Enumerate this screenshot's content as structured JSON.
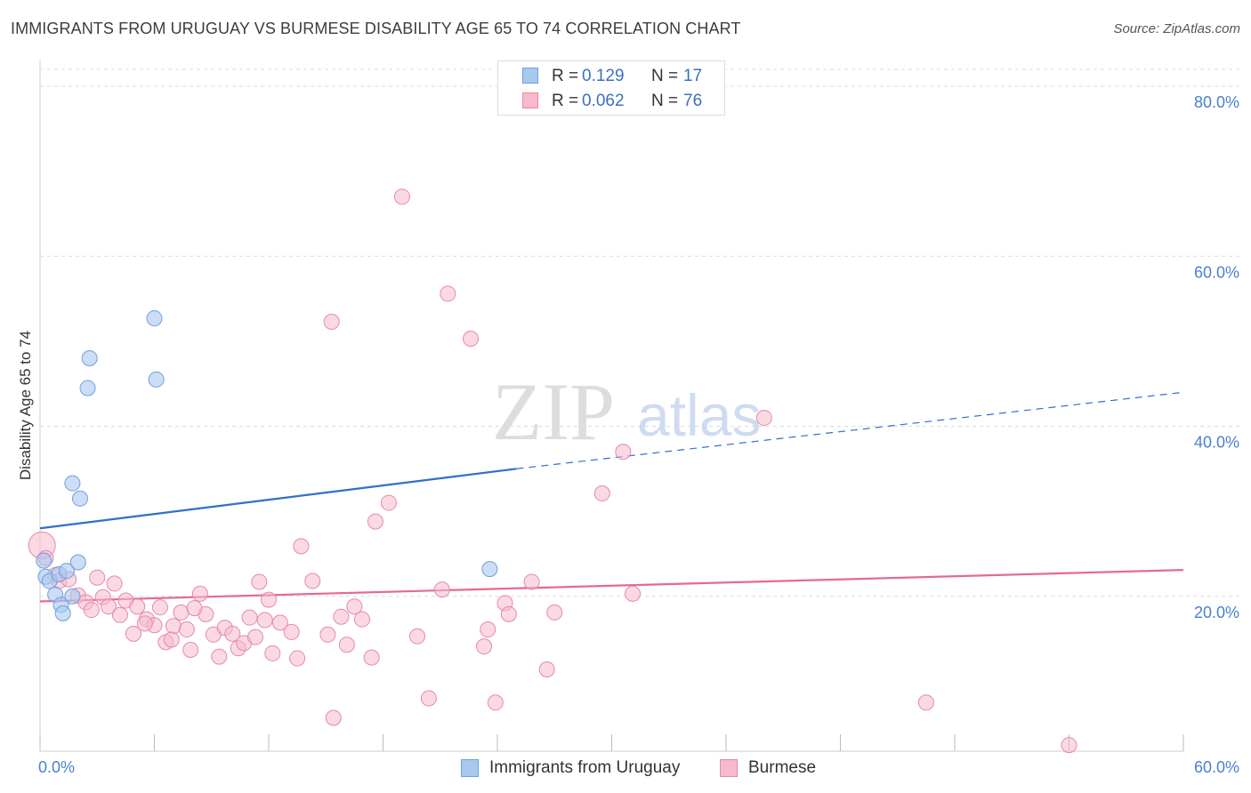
{
  "title": "IMMIGRANTS FROM URUGUAY VS BURMESE DISABILITY AGE 65 TO 74 CORRELATION CHART",
  "source": "Source: ZipAtlas.com",
  "watermark": {
    "zip": "ZIP",
    "atlas": "atlas"
  },
  "legend_top": [
    {
      "r_label": "R =",
      "r_value": "0.129",
      "n_label": "N =",
      "n_value": "17"
    },
    {
      "r_label": "R =",
      "r_value": "0.062",
      "n_label": "N =",
      "n_value": "76"
    }
  ],
  "legend_bottom": [
    "Immigrants from Uruguay",
    "Burmese"
  ],
  "colors": {
    "uruguay_fill": "#a9c8f0",
    "uruguay_stroke": "#6f9fdc",
    "uruguay_line": "#2f6fcf",
    "burmese_fill": "#f7b9cc",
    "burmese_stroke": "#e58aa7",
    "burmese_line": "#e46a92",
    "axis_label": "#4a7fd0",
    "grid": "#dcdcdc"
  },
  "chart_data": {
    "type": "scatter",
    "title": "IMMIGRANTS FROM URUGUAY VS BURMESE DISABILITY AGE 65 TO 74 CORRELATION CHART",
    "xlabel": "",
    "ylabel": "Disability Age 65 to 74",
    "xlim": [
      0,
      60
    ],
    "ylim": [
      0,
      80
    ],
    "x_tick_labels": [
      "0.0%",
      "60.0%"
    ],
    "y_tick_labels": [
      "20.0%",
      "40.0%",
      "60.0%",
      "80.0%"
    ],
    "y_ticks": [
      20,
      40,
      60,
      80
    ],
    "grid": true,
    "legend_position": "top-center and bottom",
    "series": [
      {
        "name": "Immigrants from Uruguay",
        "color": "#a9c8f0",
        "points": [
          {
            "x": 0.2,
            "y": 24.2
          },
          {
            "x": 0.3,
            "y": 22.3
          },
          {
            "x": 0.5,
            "y": 21.8
          },
          {
            "x": 0.8,
            "y": 20.2
          },
          {
            "x": 1.0,
            "y": 22.6
          },
          {
            "x": 1.1,
            "y": 19.0
          },
          {
            "x": 1.2,
            "y": 18.0
          },
          {
            "x": 1.4,
            "y": 23.0
          },
          {
            "x": 1.7,
            "y": 20.0
          },
          {
            "x": 1.7,
            "y": 33.3
          },
          {
            "x": 2.0,
            "y": 24.0
          },
          {
            "x": 2.1,
            "y": 31.5
          },
          {
            "x": 2.5,
            "y": 44.5
          },
          {
            "x": 2.6,
            "y": 48.0
          },
          {
            "x": 6.0,
            "y": 52.7
          },
          {
            "x": 6.1,
            "y": 45.5
          },
          {
            "x": 23.6,
            "y": 23.2
          }
        ],
        "trend": {
          "x": [
            0,
            25
          ],
          "y": [
            28.0,
            35.0
          ],
          "dashed_to": {
            "x": 60,
            "y": 44.0
          }
        }
      },
      {
        "name": "Burmese",
        "color": "#f7b9cc",
        "points": [
          {
            "x": 0.1,
            "y": 26.0
          },
          {
            "x": 0.3,
            "y": 24.5
          },
          {
            "x": 0.8,
            "y": 22.5
          },
          {
            "x": 1.0,
            "y": 21.8
          },
          {
            "x": 1.5,
            "y": 22.0
          },
          {
            "x": 2.0,
            "y": 20.1
          },
          {
            "x": 2.4,
            "y": 19.3
          },
          {
            "x": 2.7,
            "y": 18.4
          },
          {
            "x": 3.0,
            "y": 22.2
          },
          {
            "x": 3.3,
            "y": 19.9
          },
          {
            "x": 3.6,
            "y": 18.8
          },
          {
            "x": 3.9,
            "y": 21.5
          },
          {
            "x": 4.2,
            "y": 17.8
          },
          {
            "x": 4.5,
            "y": 19.5
          },
          {
            "x": 4.9,
            "y": 15.6
          },
          {
            "x": 5.1,
            "y": 18.8
          },
          {
            "x": 5.6,
            "y": 17.3
          },
          {
            "x": 6.0,
            "y": 16.6
          },
          {
            "x": 6.3,
            "y": 18.7
          },
          {
            "x": 6.6,
            "y": 14.6
          },
          {
            "x": 7.0,
            "y": 16.5
          },
          {
            "x": 7.4,
            "y": 18.1
          },
          {
            "x": 7.7,
            "y": 16.1
          },
          {
            "x": 7.9,
            "y": 13.7
          },
          {
            "x": 8.4,
            "y": 20.3
          },
          {
            "x": 8.7,
            "y": 17.9
          },
          {
            "x": 9.1,
            "y": 15.5
          },
          {
            "x": 9.4,
            "y": 12.9
          },
          {
            "x": 9.7,
            "y": 16.3
          },
          {
            "x": 10.1,
            "y": 15.6
          },
          {
            "x": 10.4,
            "y": 13.9
          },
          {
            "x": 10.7,
            "y": 14.5
          },
          {
            "x": 11.0,
            "y": 17.5
          },
          {
            "x": 11.3,
            "y": 15.2
          },
          {
            "x": 11.5,
            "y": 21.7
          },
          {
            "x": 11.8,
            "y": 17.2
          },
          {
            "x": 12.2,
            "y": 13.3
          },
          {
            "x": 12.6,
            "y": 16.9
          },
          {
            "x": 13.2,
            "y": 15.8
          },
          {
            "x": 13.5,
            "y": 12.7
          },
          {
            "x": 13.7,
            "y": 25.9
          },
          {
            "x": 14.3,
            "y": 21.8
          },
          {
            "x": 15.1,
            "y": 15.5
          },
          {
            "x": 15.3,
            "y": 52.3
          },
          {
            "x": 15.8,
            "y": 17.6
          },
          {
            "x": 16.1,
            "y": 14.3
          },
          {
            "x": 16.5,
            "y": 18.8
          },
          {
            "x": 16.9,
            "y": 17.3
          },
          {
            "x": 17.4,
            "y": 12.8
          },
          {
            "x": 17.6,
            "y": 28.8
          },
          {
            "x": 18.3,
            "y": 31.0
          },
          {
            "x": 19.0,
            "y": 67.0
          },
          {
            "x": 19.8,
            "y": 15.3
          },
          {
            "x": 20.4,
            "y": 8.0
          },
          {
            "x": 21.1,
            "y": 20.8
          },
          {
            "x": 21.4,
            "y": 55.6
          },
          {
            "x": 22.6,
            "y": 50.3
          },
          {
            "x": 23.3,
            "y": 14.1
          },
          {
            "x": 23.5,
            "y": 16.1
          },
          {
            "x": 23.9,
            "y": 7.5
          },
          {
            "x": 24.4,
            "y": 19.2
          },
          {
            "x": 24.6,
            "y": 17.9
          },
          {
            "x": 25.8,
            "y": 21.7
          },
          {
            "x": 26.6,
            "y": 11.4
          },
          {
            "x": 27.0,
            "y": 18.1
          },
          {
            "x": 29.5,
            "y": 32.1
          },
          {
            "x": 30.6,
            "y": 37.0
          },
          {
            "x": 31.1,
            "y": 20.3
          },
          {
            "x": 38.0,
            "y": 41.0
          },
          {
            "x": 46.5,
            "y": 7.5
          },
          {
            "x": 54.0,
            "y": 2.5
          },
          {
            "x": 15.4,
            "y": 5.7
          },
          {
            "x": 5.5,
            "y": 16.8
          },
          {
            "x": 8.1,
            "y": 18.6
          },
          {
            "x": 6.9,
            "y": 14.9
          },
          {
            "x": 12.0,
            "y": 19.6
          }
        ],
        "trend": {
          "x": [
            0,
            60
          ],
          "y": [
            19.4,
            23.1
          ]
        }
      }
    ]
  }
}
